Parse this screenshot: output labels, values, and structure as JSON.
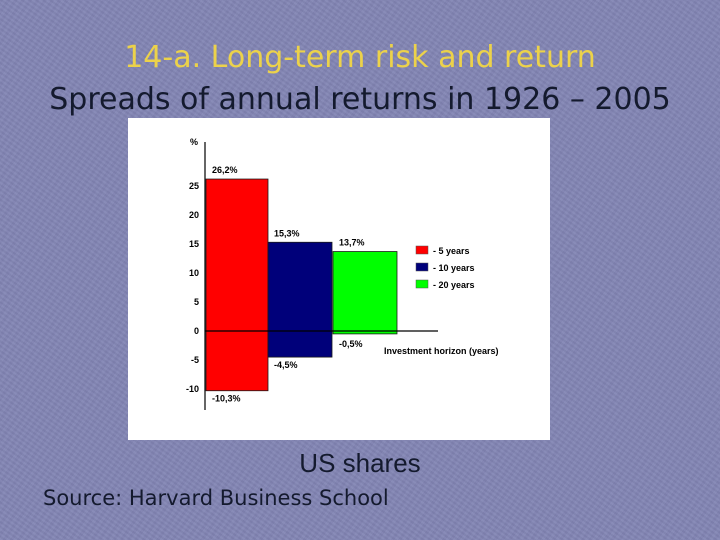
{
  "slide": {
    "title": "14-a. Long-term risk and return",
    "subtitle": "Spreads of annual returns in 1926 – 2005",
    "caption": "US shares",
    "source": "Source: Harvard Business School"
  },
  "chart_data": {
    "type": "bar",
    "variant": "floating-range",
    "ylabel": "%",
    "xlabel": "Investment horizon (years)",
    "yticks": [
      25,
      20,
      15,
      10,
      5,
      0,
      -5,
      -10
    ],
    "ylim": [
      -12,
      31
    ],
    "series": [
      {
        "name": "- 5  years",
        "max": 26.2,
        "min": -10.3,
        "max_label": "26,2%",
        "min_label": "-10,3%",
        "color": "#ff0000"
      },
      {
        "name": "- 10 years",
        "max": 15.3,
        "min": -4.5,
        "max_label": "15,3%",
        "min_label": "-4,5%",
        "color": "#00007a"
      },
      {
        "name": "- 20 years",
        "max": 13.7,
        "min": -0.5,
        "max_label": "13,7%",
        "min_label": "-0,5%",
        "color": "#00ff00"
      }
    ],
    "legend_position": "right",
    "grid": false
  }
}
